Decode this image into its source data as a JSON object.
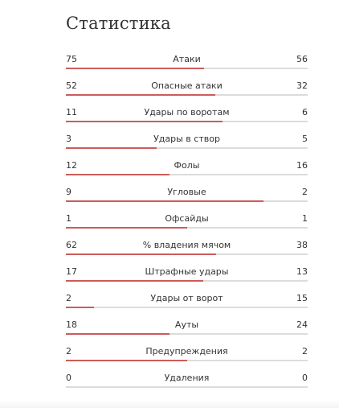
{
  "title": "Статистика",
  "colors": {
    "bar_fill": "#cc5c5a",
    "bar_track": "#dcdcdc",
    "text": "#333333"
  },
  "stats": [
    {
      "label": "Атаки",
      "left": "75",
      "right": "56",
      "share": 0.5725
    },
    {
      "label": "Опасные атаки",
      "left": "52",
      "right": "32",
      "share": 0.619
    },
    {
      "label": "Удары по воротам",
      "left": "11",
      "right": "6",
      "share": 0.6471
    },
    {
      "label": "Удары в створ",
      "left": "3",
      "right": "5",
      "share": 0.375
    },
    {
      "label": "Фолы",
      "left": "12",
      "right": "16",
      "share": 0.4286
    },
    {
      "label": "Угловые",
      "left": "9",
      "right": "2",
      "share": 0.8182
    },
    {
      "label": "Офсайды",
      "left": "1",
      "right": "1",
      "share": 0.5
    },
    {
      "label": "% владения мячом",
      "left": "62",
      "right": "38",
      "share": 0.62
    },
    {
      "label": "Штрафные удары",
      "left": "17",
      "right": "13",
      "share": 0.5667
    },
    {
      "label": "Удары от ворот",
      "left": "2",
      "right": "15",
      "share": 0.1176
    },
    {
      "label": "Ауты",
      "left": "18",
      "right": "24",
      "share": 0.4286
    },
    {
      "label": "Предупреждения",
      "left": "2",
      "right": "2",
      "share": 0.5
    },
    {
      "label": "Удаления",
      "left": "0",
      "right": "0",
      "share": 0
    }
  ]
}
